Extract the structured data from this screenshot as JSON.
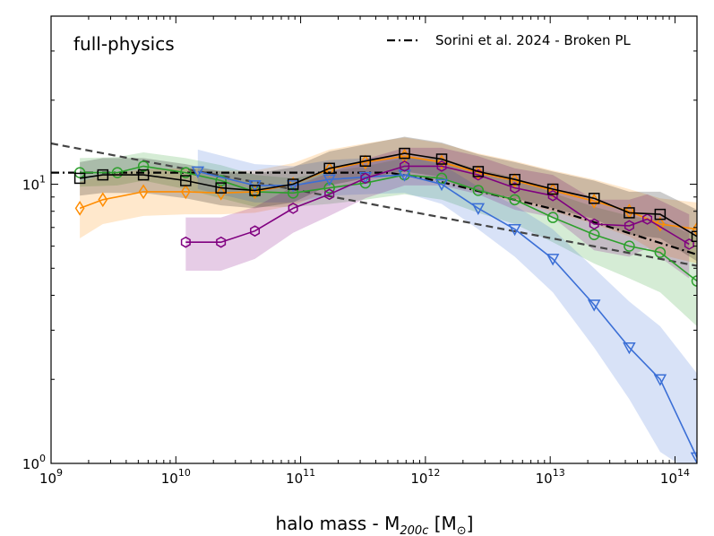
{
  "chart_data": {
    "type": "line",
    "panel_title": "full-physics",
    "xlabel": "halo mass - M200c [M⊙]",
    "xlabel_parts": {
      "main": "halo mass - M",
      "sub": "200c",
      "unit": " [M",
      "sun": "⊙",
      "close": "]"
    },
    "xscale": "log",
    "yscale": "log",
    "xlim": [
      1000000000.0,
      150000000000000.0
    ],
    "ylim": [
      1,
      40
    ],
    "x_ticks": [
      {
        "value": 1000000000.0,
        "base": "10",
        "exp": "9"
      },
      {
        "value": 10000000000.0,
        "base": "10",
        "exp": "10"
      },
      {
        "value": 100000000000.0,
        "base": "10",
        "exp": "11"
      },
      {
        "value": 1000000000000.0,
        "base": "10",
        "exp": "12"
      },
      {
        "value": 10000000000000.0,
        "base": "10",
        "exp": "13"
      },
      {
        "value": 100000000000000.0,
        "base": "10",
        "exp": "14"
      }
    ],
    "y_ticks": [
      {
        "value": 1,
        "base": "10",
        "exp": "0"
      },
      {
        "value": 10,
        "base": "10",
        "exp": "1"
      }
    ],
    "legend": {
      "label": "Sorini et al. 2024 - Broken PL",
      "placement": "top-right"
    },
    "series": [
      {
        "name": "green-circle",
        "color": "#2ca02c",
        "marker": "circle",
        "x": [
          1700000000.0,
          3400000000.0,
          5500000000.0,
          12000000000.0,
          23000000000.0,
          43000000000.0,
          87000000000.0,
          170000000000.0,
          330000000000.0,
          680000000000.0,
          1350000000000.0,
          2650000000000.0,
          5200000000000.0,
          10500000000000.0,
          22500000000000.0,
          43000000000000.0,
          76000000000000.0,
          150000000000000.0
        ],
        "y": [
          11.0,
          11.0,
          11.6,
          11.0,
          10.3,
          9.4,
          9.3,
          9.7,
          10.1,
          10.8,
          10.5,
          9.5,
          8.8,
          7.6,
          6.6,
          6.0,
          5.7,
          4.5
        ],
        "low": [
          9.8,
          9.9,
          10.3,
          9.6,
          8.9,
          8.3,
          8.3,
          8.5,
          8.8,
          9.2,
          8.8,
          7.9,
          7.2,
          6.2,
          5.2,
          4.6,
          4.1,
          3.1
        ],
        "high": [
          12.4,
          12.5,
          13.0,
          12.4,
          11.7,
          10.8,
          10.5,
          11.1,
          11.6,
          12.4,
          12.4,
          11.3,
          10.6,
          9.3,
          8.3,
          7.7,
          7.4,
          6.5
        ]
      },
      {
        "name": "orange-diamond",
        "color": "#ff8c00",
        "marker": "diamond",
        "x": [
          1700000000.0,
          2600000000.0,
          5500000000.0,
          12000000000.0,
          23000000000.0,
          43000000000.0,
          87000000000.0,
          170000000000.0,
          330000000000.0,
          680000000000.0,
          1350000000000.0,
          2650000000000.0,
          5200000000000.0,
          10500000000000.0,
          22500000000000.0,
          43000000000000.0,
          76000000000000.0,
          150000000000000.0
        ],
        "y": [
          8.2,
          8.8,
          9.4,
          9.4,
          9.3,
          9.4,
          10.0,
          11.3,
          12.0,
          12.6,
          12.0,
          11.0,
          10.3,
          9.5,
          8.7,
          8.0,
          7.2,
          6.9
        ],
        "low": [
          6.4,
          7.2,
          7.7,
          7.8,
          7.8,
          7.9,
          8.4,
          9.5,
          10.3,
          10.8,
          10.3,
          9.3,
          8.7,
          8.0,
          7.2,
          6.5,
          5.6,
          5.2
        ],
        "high": [
          10.2,
          10.8,
          11.3,
          11.4,
          11.2,
          11.2,
          11.9,
          13.3,
          14.0,
          14.7,
          14.0,
          12.9,
          12.1,
          11.2,
          10.4,
          9.6,
          8.9,
          8.6
        ]
      },
      {
        "name": "blue-triangle",
        "color": "#3b6fd6",
        "marker": "triangle-down",
        "x": [
          15000000000.0,
          43000000000.0,
          87000000000.0,
          170000000000.0,
          330000000000.0,
          680000000000.0,
          1350000000000.0,
          2650000000000.0,
          5200000000000.0,
          10500000000000.0,
          22500000000000.0,
          43000000000000.0,
          76000000000000.0,
          150000000000000.0
        ],
        "y": [
          11.1,
          9.9,
          9.9,
          10.4,
          10.6,
          10.8,
          10.0,
          8.2,
          6.9,
          5.4,
          3.7,
          2.6,
          2.0,
          1.05
        ],
        "low": [
          9.6,
          8.6,
          8.6,
          9.1,
          9.2,
          9.3,
          8.5,
          6.9,
          5.5,
          4.1,
          2.6,
          1.7,
          1.1,
          0.9
        ],
        "high": [
          13.3,
          11.8,
          11.6,
          12.2,
          12.4,
          12.6,
          11.8,
          9.8,
          8.4,
          6.9,
          5.0,
          3.8,
          3.1,
          2.1
        ]
      },
      {
        "name": "purple-hexagon",
        "color": "#800080",
        "marker": "hexagon",
        "x": [
          12000000000.0,
          23000000000.0,
          43000000000.0,
          87000000000.0,
          170000000000.0,
          330000000000.0,
          680000000000.0,
          1350000000000.0,
          2650000000000.0,
          5200000000000.0,
          10500000000000.0,
          22500000000000.0,
          43000000000000.0,
          60000000000000.0,
          130000000000000.0
        ],
        "y": [
          6.2,
          6.2,
          6.8,
          8.2,
          9.2,
          10.5,
          11.6,
          11.6,
          10.8,
          9.7,
          9.1,
          7.2,
          7.1,
          7.5,
          6.1
        ],
        "low": [
          4.9,
          4.9,
          5.4,
          6.7,
          7.7,
          8.9,
          9.9,
          9.9,
          9.2,
          8.1,
          7.6,
          5.8,
          5.5,
          5.9,
          4.6
        ],
        "high": [
          7.6,
          7.6,
          8.3,
          9.8,
          11.0,
          12.3,
          13.5,
          13.5,
          12.6,
          11.4,
          10.8,
          8.8,
          8.8,
          9.2,
          7.8
        ]
      },
      {
        "name": "black-square",
        "color": "#000000",
        "marker": "square",
        "x": [
          1700000000.0,
          2600000000.0,
          5500000000.0,
          12000000000.0,
          23000000000.0,
          43000000000.0,
          87000000000.0,
          170000000000.0,
          330000000000.0,
          680000000000.0,
          1350000000000.0,
          2650000000000.0,
          5200000000000.0,
          10500000000000.0,
          22500000000000.0,
          43000000000000.0,
          76000000000000.0,
          150000000000000.0
        ],
        "y": [
          10.5,
          10.8,
          10.8,
          10.3,
          9.7,
          9.5,
          10.0,
          11.4,
          12.1,
          12.9,
          12.3,
          11.1,
          10.4,
          9.6,
          8.9,
          7.9,
          7.8,
          6.5
        ],
        "low": [
          9.1,
          9.3,
          9.3,
          8.9,
          8.4,
          8.2,
          8.6,
          9.9,
          10.5,
          11.1,
          10.6,
          9.5,
          8.9,
          8.2,
          7.5,
          6.6,
          6.4,
          5.3
        ],
        "high": [
          12.0,
          12.4,
          12.4,
          11.8,
          11.1,
          10.9,
          11.5,
          13.1,
          13.9,
          14.8,
          14.1,
          12.8,
          12.0,
          11.1,
          10.3,
          9.4,
          9.4,
          8.1
        ]
      }
    ],
    "reference_lines": [
      {
        "name": "sorini-broken-pl",
        "style": "dash-dot",
        "color": "#000000",
        "x": [
          1000000000.0,
          500000000000.0,
          1000000000000.0,
          10000000000000.0,
          150000000000000.0
        ],
        "y": [
          11.0,
          11.0,
          10.5,
          8.2,
          5.6
        ]
      },
      {
        "name": "grey-dashed",
        "style": "dashed",
        "color": "#444444",
        "x": [
          1000000000.0,
          150000000000000.0
        ],
        "y": [
          14.0,
          5.1
        ]
      }
    ]
  }
}
